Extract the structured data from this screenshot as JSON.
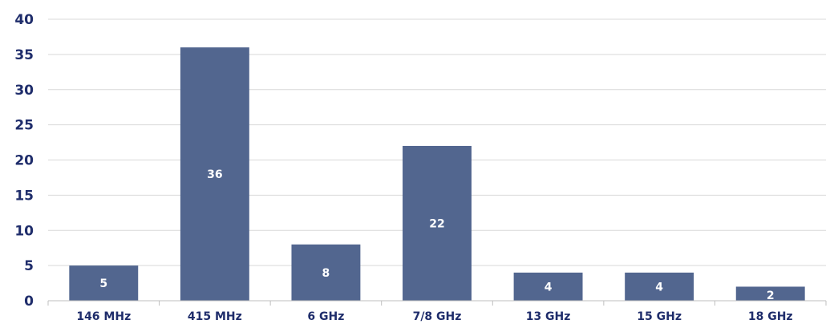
{
  "chart_data": {
    "type": "bar",
    "title": "",
    "xlabel": "",
    "ylabel": "",
    "categories": [
      "146 MHz",
      "415 MHz",
      "6 GHz",
      "7/8 GHz",
      "13 GHz",
      "15 GHz",
      "18 GHz"
    ],
    "values": [
      5,
      36,
      8,
      22,
      4,
      4,
      2
    ],
    "data_labels": [
      "5",
      "36",
      "8",
      "22",
      "4",
      "4",
      "2"
    ],
    "ylim": [
      0,
      40
    ],
    "yticks": [
      "0",
      "5",
      "10",
      "15",
      "20",
      "25",
      "30",
      "35",
      "40"
    ],
    "grid": true,
    "legend": "none",
    "colors": {
      "bar": "#52668f",
      "tick_text": "#1f2d6b",
      "data_label_text": "#ffffff",
      "grid": "#d9d9d9"
    }
  }
}
